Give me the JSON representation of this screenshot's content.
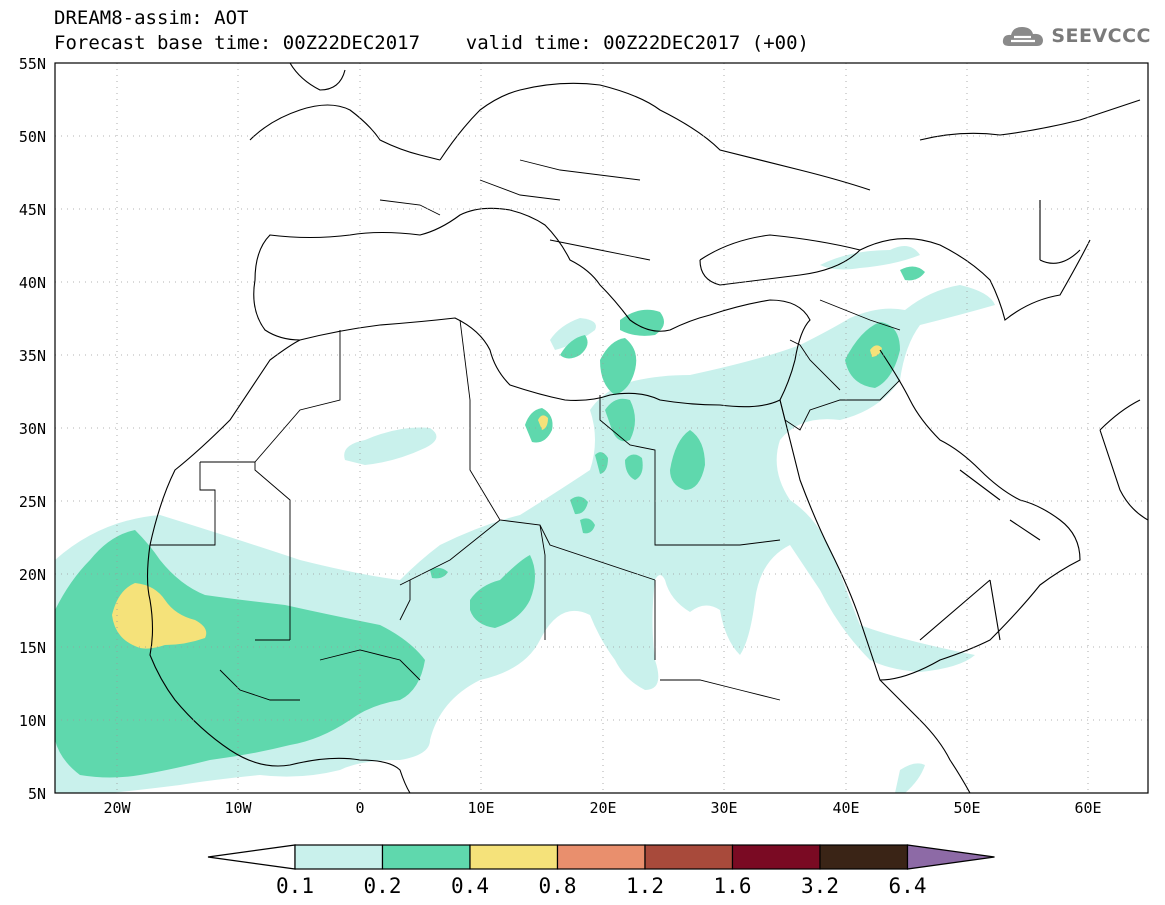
{
  "header": {
    "line1": "DREAM8-assim: AOT",
    "line2": "Forecast base time: 00Z22DEC2017    valid time: 00Z22DEC2017 (+00)"
  },
  "logo": {
    "text": "SEEVCCC",
    "icon": "cloud-logo-icon"
  },
  "map": {
    "lat_labels": [
      "55N",
      "50N",
      "45N",
      "40N",
      "35N",
      "30N",
      "25N",
      "20N",
      "15N",
      "10N",
      "5N"
    ],
    "lon_labels": [
      "20W",
      "10W",
      "0",
      "10E",
      "20E",
      "30E",
      "40E",
      "50E",
      "60E"
    ],
    "extent": {
      "lon_min": -25,
      "lon_max": 65,
      "lat_min": 5,
      "lat_max": 55
    },
    "ocean_color": "#ffffff",
    "border_color": "#000000"
  },
  "colorbar": {
    "ticks": [
      "0.1",
      "0.2",
      "0.4",
      "0.8",
      "1.2",
      "1.6",
      "3.2",
      "6.4"
    ],
    "colors": [
      "#c9f1ec",
      "#5fd8ad",
      "#f5e27a",
      "#e98f6d",
      "#a84a3b",
      "#7a0a23",
      "#3a2416",
      "#8d6aa6"
    ],
    "under_color": "#ffffff"
  }
}
